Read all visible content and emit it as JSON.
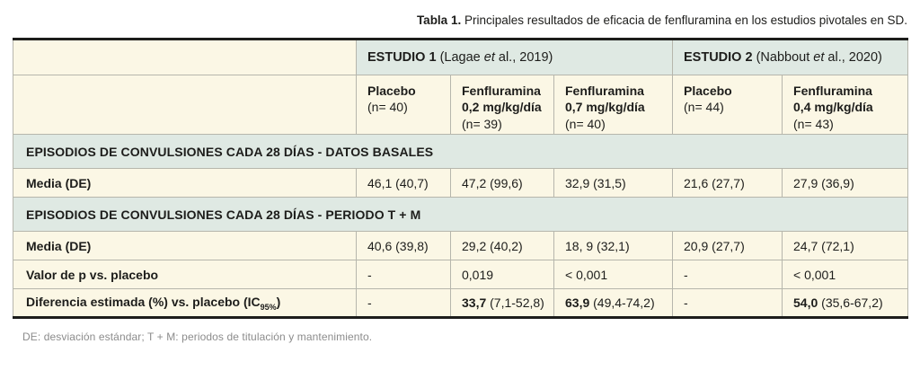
{
  "title": {
    "label": "Tabla 1.",
    "text": " Principales resultados de eficacia de fenfluramina en los estudios pivotales en SD."
  },
  "colors": {
    "cream_row": "#fbf7e5",
    "teal_row": "#dfe9e3",
    "thick_border": "#1d1d1b",
    "grid_border": "#b6b6ac",
    "footer_text": "#8c8c8c"
  },
  "header": {
    "study1": {
      "name": "ESTUDIO 1",
      "cite_pre": " (Lagae ",
      "cite_et": "et",
      "cite_post": " al., 2019)"
    },
    "study2": {
      "name": "ESTUDIO 2",
      "cite_pre": " (Nabbout ",
      "cite_et": "et",
      "cite_post": " al., 2020)"
    }
  },
  "columns": [
    {
      "drug": "Placebo",
      "dose": "",
      "n": "(n= 40)"
    },
    {
      "drug": "Fenfluramina",
      "dose": "0,2 mg/kg/día",
      "n": "(n= 39)"
    },
    {
      "drug": "Fenfluramina",
      "dose": "0,7 mg/kg/día",
      "n": "(n= 40)"
    },
    {
      "drug": "Placebo",
      "dose": "",
      "n": "(n= 44)"
    },
    {
      "drug": "Fenfluramina",
      "dose": "0,4 mg/kg/día",
      "n": "(n= 43)"
    }
  ],
  "sections": [
    {
      "title": "EPISODIOS DE CONVULSIONES CADA 28 DÍAS - DATOS BASALES"
    },
    {
      "title": "EPISODIOS DE CONVULSIONES CADA 28 DÍAS - PERIODO T + M"
    }
  ],
  "rows": {
    "media_basal": {
      "label": "Media (DE)",
      "values": [
        "46,1 (40,7)",
        "47,2 (99,6)",
        "32,9 (31,5)",
        "21,6 (27,7)",
        "27,9 (36,9)"
      ]
    },
    "media_tm": {
      "label": "Media (DE)",
      "values": [
        "40,6 (39,8)",
        "29,2 (40,2)",
        "18, 9 (32,1)",
        "20,9 (27,7)",
        "24,7 (72,1)"
      ]
    },
    "pvalue": {
      "label": "Valor de p vs. placebo",
      "values": [
        "-",
        "0,019",
        "< 0,001",
        "-",
        "< 0,001"
      ]
    },
    "diff": {
      "label_pre": "Diferencia estimada (%) vs. placebo (IC",
      "label_sub": "95%",
      "label_post": ")",
      "values": [
        {
          "bold": "",
          "rest": "-"
        },
        {
          "bold": "33,7",
          "rest": " (7,1-52,8)"
        },
        {
          "bold": "63,9",
          "rest": " (49,4-74,2)"
        },
        {
          "bold": "",
          "rest": "-"
        },
        {
          "bold": "54,0",
          "rest": " (35,6-67,2)"
        }
      ]
    }
  },
  "footer": "DE: desviación estándar; T + M: periodos de titulación y mantenimiento."
}
